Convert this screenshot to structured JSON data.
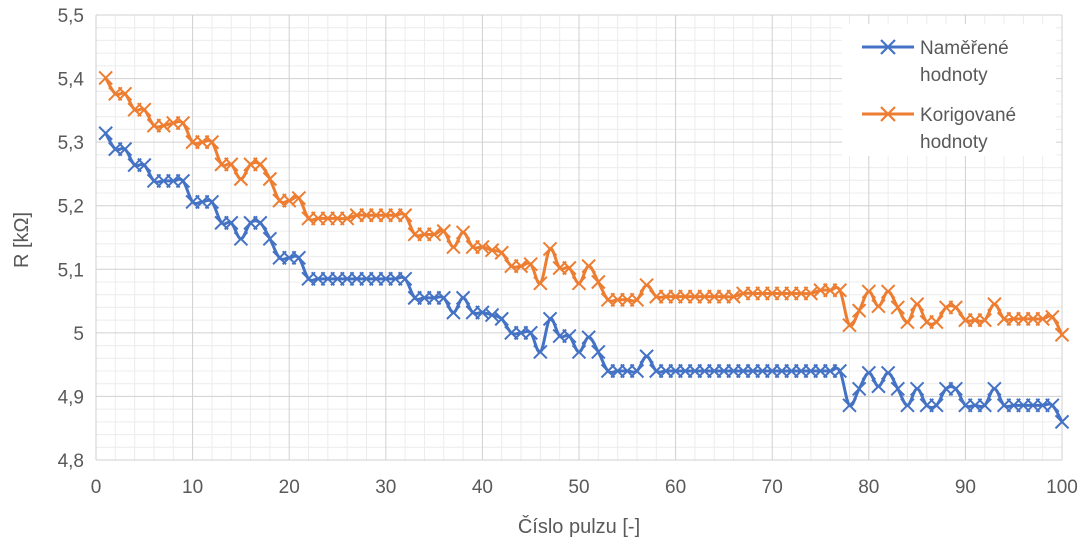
{
  "chart_data": {
    "type": "line",
    "title": "",
    "xlabel": "Číslo pulzu [-]",
    "ylabel": "R [kΩ]",
    "xlim": [
      0,
      100
    ],
    "ylim": [
      4.8,
      5.5
    ],
    "x_ticks": [
      0,
      10,
      20,
      30,
      40,
      50,
      60,
      70,
      80,
      90,
      100
    ],
    "x_tick_labels": [
      "0",
      "10",
      "20",
      "30",
      "40",
      "50",
      "60",
      "70",
      "80",
      "90",
      "100"
    ],
    "y_ticks": [
      4.8,
      4.9,
      5.0,
      5.1,
      5.2,
      5.3,
      5.4,
      5.5
    ],
    "y_tick_labels": [
      "4,8",
      "4,9",
      "5",
      "5,1",
      "5,2",
      "5,3",
      "5,4",
      "5,5"
    ],
    "grid": true,
    "legend_position": "top-right",
    "x": [
      1,
      2,
      3,
      4,
      5,
      6,
      7,
      8,
      9,
      10,
      11,
      12,
      13,
      14,
      15,
      16,
      17,
      18,
      19,
      20,
      21,
      22,
      23,
      24,
      25,
      26,
      27,
      28,
      29,
      30,
      31,
      32,
      33,
      34,
      35,
      36,
      37,
      38,
      39,
      40,
      41,
      42,
      43,
      44,
      45,
      46,
      47,
      48,
      49,
      50,
      51,
      52,
      53,
      54,
      55,
      56,
      57,
      58,
      59,
      60,
      61,
      62,
      63,
      64,
      65,
      66,
      67,
      68,
      69,
      70,
      71,
      72,
      73,
      74,
      75,
      76,
      77,
      78,
      79,
      80,
      81,
      82,
      83,
      84,
      85,
      86,
      87,
      88,
      89,
      90,
      91,
      92,
      93,
      94,
      95,
      96,
      97,
      98,
      99,
      100
    ],
    "series": [
      {
        "name": "Naměřené hodnoty",
        "color": "#4472C4",
        "values": [
          5.314,
          5.289,
          5.289,
          5.264,
          5.264,
          5.239,
          5.239,
          5.239,
          5.239,
          5.206,
          5.206,
          5.206,
          5.173,
          5.173,
          5.148,
          5.173,
          5.173,
          5.148,
          5.118,
          5.118,
          5.118,
          5.085,
          5.085,
          5.085,
          5.085,
          5.085,
          5.085,
          5.085,
          5.085,
          5.085,
          5.085,
          5.085,
          5.055,
          5.055,
          5.055,
          5.055,
          5.032,
          5.055,
          5.032,
          5.032,
          5.028,
          5.022,
          5.0,
          5.0,
          5.0,
          4.97,
          5.022,
          4.995,
          4.995,
          4.97,
          4.993,
          4.97,
          4.94,
          4.94,
          4.94,
          4.94,
          4.963,
          4.94,
          4.94,
          4.94,
          4.94,
          4.94,
          4.94,
          4.94,
          4.94,
          4.94,
          4.94,
          4.94,
          4.94,
          4.94,
          4.94,
          4.94,
          4.94,
          4.94,
          4.94,
          4.94,
          4.94,
          4.886,
          4.912,
          4.937,
          4.916,
          4.937,
          4.912,
          4.886,
          4.912,
          4.886,
          4.886,
          4.912,
          4.912,
          4.886,
          4.886,
          4.886,
          4.912,
          4.886,
          4.886,
          4.886,
          4.886,
          4.886,
          4.886,
          4.86
        ]
      },
      {
        "name": "Korigované hodnoty",
        "color": "#ED7D31",
        "values": [
          5.401,
          5.376,
          5.376,
          5.351,
          5.351,
          5.326,
          5.326,
          5.33,
          5.33,
          5.3,
          5.3,
          5.3,
          5.265,
          5.265,
          5.242,
          5.265,
          5.265,
          5.242,
          5.208,
          5.208,
          5.212,
          5.18,
          5.18,
          5.18,
          5.18,
          5.18,
          5.185,
          5.185,
          5.185,
          5.185,
          5.185,
          5.185,
          5.155,
          5.155,
          5.155,
          5.16,
          5.135,
          5.158,
          5.135,
          5.135,
          5.13,
          5.126,
          5.105,
          5.105,
          5.108,
          5.078,
          5.132,
          5.102,
          5.102,
          5.078,
          5.105,
          5.08,
          5.052,
          5.052,
          5.052,
          5.052,
          5.075,
          5.057,
          5.057,
          5.057,
          5.057,
          5.057,
          5.057,
          5.057,
          5.057,
          5.057,
          5.062,
          5.062,
          5.062,
          5.062,
          5.062,
          5.062,
          5.062,
          5.062,
          5.067,
          5.067,
          5.067,
          5.012,
          5.035,
          5.065,
          5.042,
          5.065,
          5.04,
          5.017,
          5.045,
          5.017,
          5.017,
          5.04,
          5.04,
          5.02,
          5.02,
          5.02,
          5.045,
          5.022,
          5.022,
          5.022,
          5.022,
          5.022,
          5.025,
          4.997
        ]
      }
    ]
  },
  "legend": {
    "items": [
      {
        "line1": "Naměřené",
        "line2": "hodnoty",
        "color": "#4472C4"
      },
      {
        "line1": "Korigované",
        "line2": "hodnoty",
        "color": "#ED7D31"
      }
    ]
  }
}
